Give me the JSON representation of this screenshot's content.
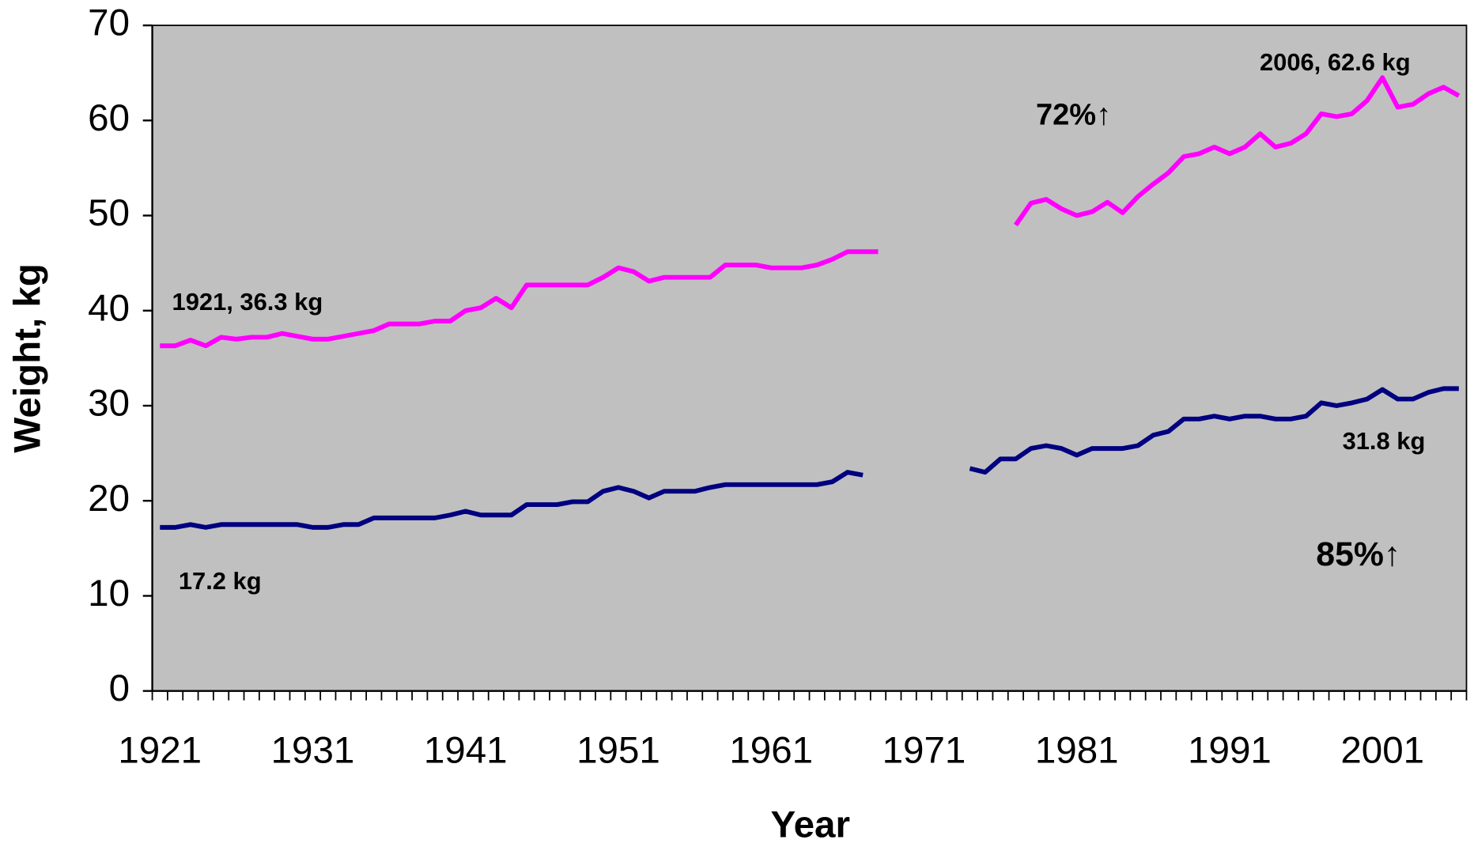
{
  "chart_data": {
    "type": "line",
    "x_label": "Year",
    "y_label": "Weight, kg",
    "x": [
      1921,
      1922,
      1923,
      1924,
      1925,
      1926,
      1927,
      1928,
      1929,
      1930,
      1931,
      1932,
      1933,
      1934,
      1935,
      1936,
      1937,
      1938,
      1939,
      1940,
      1941,
      1942,
      1943,
      1944,
      1945,
      1946,
      1947,
      1948,
      1949,
      1950,
      1951,
      1952,
      1953,
      1954,
      1955,
      1956,
      1957,
      1958,
      1959,
      1960,
      1961,
      1962,
      1963,
      1964,
      1965,
      1966,
      1967,
      1968,
      1969,
      1970,
      1971,
      1972,
      1973,
      1974,
      1975,
      1976,
      1977,
      1978,
      1979,
      1980,
      1981,
      1982,
      1983,
      1984,
      1985,
      1986,
      1987,
      1988,
      1989,
      1990,
      1991,
      1992,
      1993,
      1994,
      1995,
      1996,
      1997,
      1998,
      1999,
      2000,
      2001,
      2002,
      2003,
      2004,
      2005,
      2006
    ],
    "series": [
      {
        "color": "#ff00ff",
        "values": [
          36.3,
          36.3,
          36.9,
          36.3,
          37.2,
          37.0,
          37.2,
          37.2,
          37.6,
          37.3,
          37.0,
          37.0,
          37.3,
          37.6,
          37.9,
          38.6,
          38.6,
          38.6,
          38.9,
          38.9,
          40.0,
          40.3,
          41.3,
          40.3,
          42.7,
          42.7,
          42.7,
          42.7,
          42.7,
          43.5,
          44.5,
          44.1,
          43.1,
          43.5,
          43.5,
          43.5,
          43.5,
          44.8,
          44.8,
          44.8,
          44.5,
          44.5,
          44.5,
          44.8,
          45.4,
          46.2,
          46.2,
          46.2,
          null,
          null,
          null,
          null,
          null,
          null,
          null,
          null,
          49.0,
          51.3,
          51.7,
          50.7,
          50.0,
          50.4,
          51.4,
          50.3,
          52.0,
          53.3,
          54.5,
          56.2,
          56.5,
          57.2,
          56.5,
          57.2,
          58.6,
          57.2,
          57.6,
          58.6,
          60.7,
          60.4,
          60.7,
          62.1,
          64.5,
          61.4,
          61.7,
          62.8,
          63.5,
          62.6
        ]
      },
      {
        "color": "#000080",
        "values": [
          17.2,
          17.2,
          17.5,
          17.2,
          17.5,
          17.5,
          17.5,
          17.5,
          17.5,
          17.5,
          17.2,
          17.2,
          17.5,
          17.5,
          18.2,
          18.2,
          18.2,
          18.2,
          18.2,
          18.5,
          18.9,
          18.5,
          18.5,
          18.5,
          19.6,
          19.6,
          19.6,
          19.9,
          19.9,
          21.0,
          21.4,
          21.0,
          20.3,
          21.0,
          21.0,
          21.0,
          21.4,
          21.7,
          21.7,
          21.7,
          21.7,
          21.7,
          21.7,
          21.7,
          22.0,
          23.0,
          22.7,
          null,
          null,
          null,
          null,
          null,
          null,
          23.4,
          23.0,
          24.4,
          24.4,
          25.5,
          25.8,
          25.5,
          24.8,
          25.5,
          25.5,
          25.5,
          25.8,
          26.9,
          27.3,
          28.6,
          28.6,
          28.9,
          28.6,
          28.9,
          28.9,
          28.6,
          28.6,
          28.9,
          30.3,
          30.0,
          30.3,
          30.7,
          31.7,
          30.7,
          30.7,
          31.4,
          31.8,
          31.8
        ]
      }
    ],
    "annotations": [
      "1921, 36.3 kg",
      "2006, 62.6 kg",
      "72%↑",
      "17.2 kg",
      "31.8 kg",
      "85%↑"
    ],
    "xlim": [
      1920.5,
      2006.5
    ],
    "xticks": [
      1921,
      1931,
      1941,
      1951,
      1961,
      1971,
      1981,
      1991,
      2001
    ],
    "ylim": [
      0,
      70
    ],
    "yticks": [
      0,
      10,
      20,
      30,
      40,
      50,
      60,
      70
    ],
    "plot_background": "#c0c0c0",
    "grid": false
  }
}
